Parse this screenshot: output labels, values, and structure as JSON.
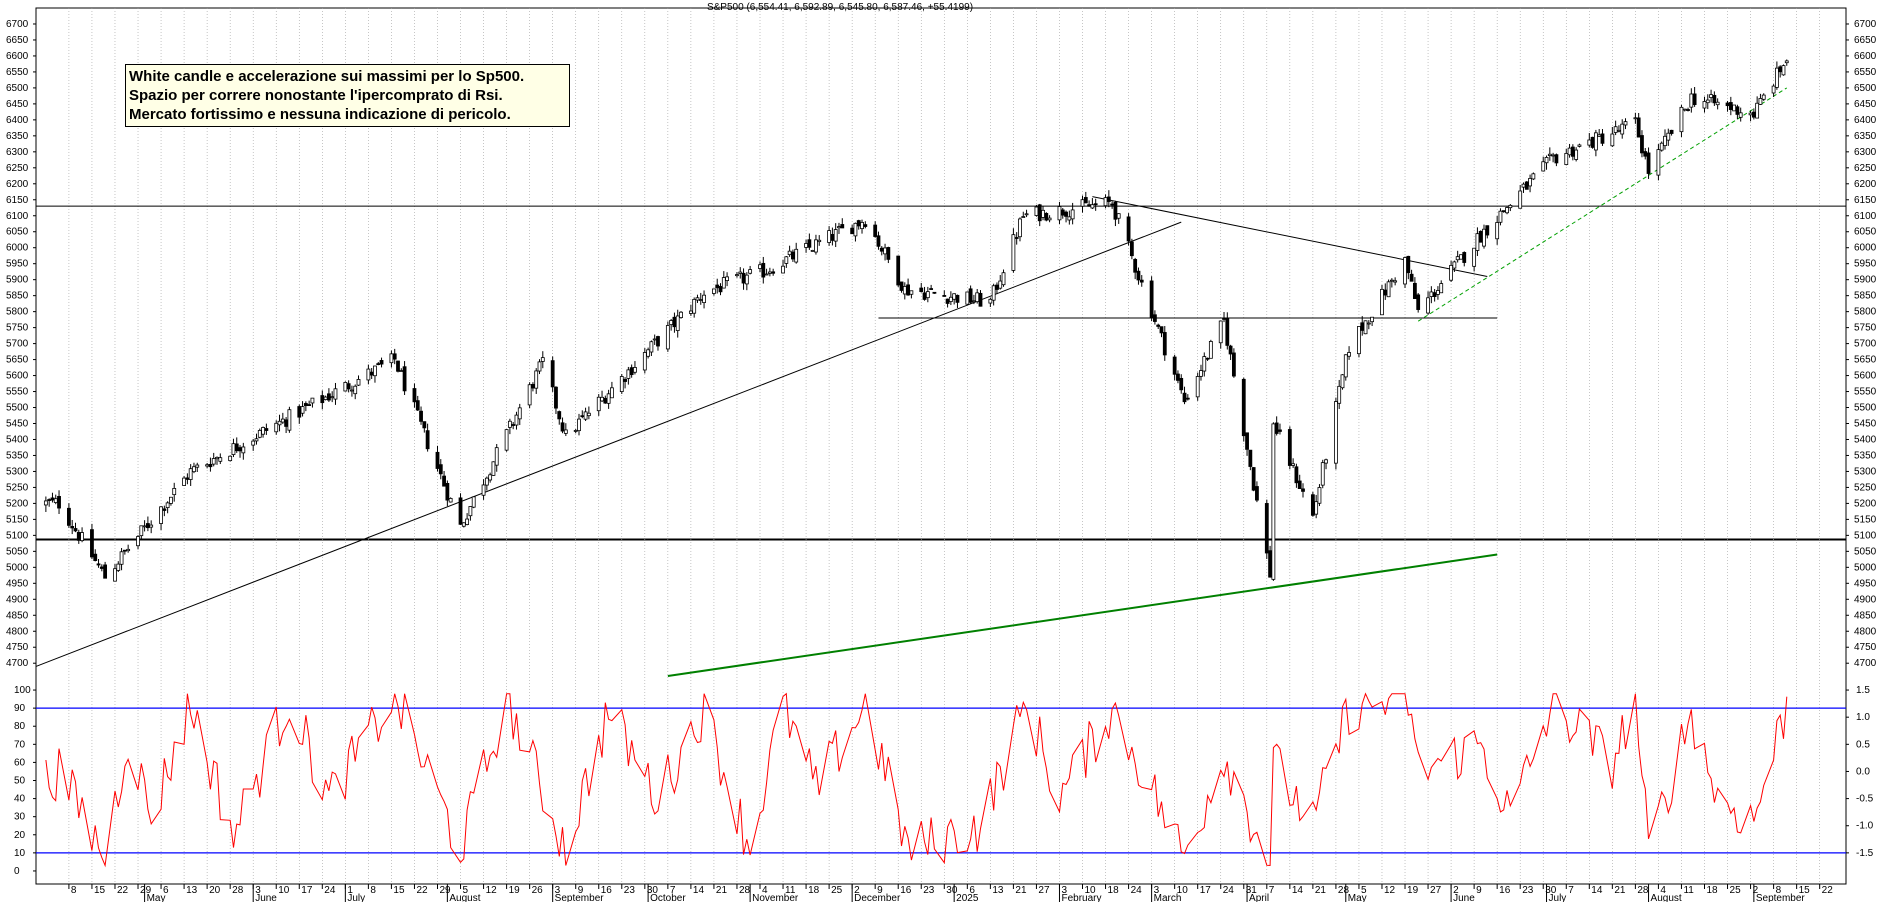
{
  "header": {
    "title": "S&P500 (6,554.41, 6,592.89, 6,545.80, 6,587.46, +55.4199)"
  },
  "annotation": {
    "lines": [
      "White candle e accelerazione sui massimi per lo Sp500.",
      "Spazio per correre nonostante l'ipercomprato di Rsi.",
      "Mercato fortissimo e nessuna indicazione di pericolo."
    ]
  },
  "colors": {
    "candle_up_fill": "#ffffff",
    "candle_down_fill": "#000000",
    "oscillator_line": "#ff0000",
    "oscillator_bands": "#0000ff",
    "support_trendline": "#008000",
    "rising_trendline": "#00a000",
    "grid": "#a0a0a0",
    "annotation_background": "#ffffe6"
  },
  "chart_data": [
    {
      "type": "candlestick",
      "name": "S&P500",
      "ylim": [
        4660,
        6750
      ],
      "y_ticks": [
        4700,
        4750,
        4800,
        4850,
        4900,
        4950,
        5000,
        5050,
        5100,
        5150,
        5200,
        5250,
        5300,
        5350,
        5400,
        5450,
        5500,
        5550,
        5600,
        5650,
        5700,
        5750,
        5800,
        5850,
        5900,
        5950,
        6000,
        6050,
        6100,
        6150,
        6200,
        6250,
        6300,
        6350,
        6400,
        6450,
        6500,
        6550,
        6600,
        6650,
        6700
      ],
      "x_tick_labels": [
        "8",
        "15",
        "22",
        "29",
        "6",
        "13",
        "20",
        "28",
        "3",
        "10",
        "17",
        "24",
        "1",
        "8",
        "15",
        "22",
        "29",
        "5",
        "12",
        "19",
        "26",
        "3",
        "9",
        "16",
        "23",
        "30",
        "7",
        "14",
        "21",
        "28",
        "4",
        "11",
        "18",
        "25",
        "2",
        "9",
        "16",
        "23",
        "30",
        "6",
        "13",
        "21",
        "27",
        "3",
        "10",
        "18",
        "24",
        "3",
        "10",
        "17",
        "24",
        "31",
        "7",
        "14",
        "21",
        "28",
        "5",
        "12",
        "19",
        "27",
        "2",
        "9",
        "16",
        "23",
        "30",
        "7",
        "14",
        "21",
        "28",
        "4",
        "11",
        "18",
        "25",
        "2",
        "8",
        "15",
        "22"
      ],
      "month_labels": [
        "May",
        "June",
        "July",
        "August",
        "September",
        "October",
        "November",
        "December",
        "2025",
        "February",
        "March",
        "April",
        "May",
        "June",
        "July",
        "August",
        "September"
      ],
      "anchor_points": [
        {
          "x": "2024-04-05",
          "y": 5200
        },
        {
          "x": "2024-04-19",
          "y": 4970
        },
        {
          "x": "2024-05-15",
          "y": 5300
        },
        {
          "x": "2024-07-16",
          "y": 5650
        },
        {
          "x": "2024-08-05",
          "y": 5130
        },
        {
          "x": "2024-08-30",
          "y": 5640
        },
        {
          "x": "2024-09-06",
          "y": 5410
        },
        {
          "x": "2024-10-18",
          "y": 5860
        },
        {
          "x": "2024-11-06",
          "y": 5930
        },
        {
          "x": "2024-12-06",
          "y": 6090
        },
        {
          "x": "2024-12-18",
          "y": 5870
        },
        {
          "x": "2025-01-13",
          "y": 5830
        },
        {
          "x": "2025-01-23",
          "y": 6100
        },
        {
          "x": "2025-02-19",
          "y": 6140
        },
        {
          "x": "2025-03-13",
          "y": 5520
        },
        {
          "x": "2025-03-25",
          "y": 5770
        },
        {
          "x": "2025-04-08",
          "y": 4980
        },
        {
          "x": "2025-04-09",
          "y": 5450
        },
        {
          "x": "2025-04-21",
          "y": 5160
        },
        {
          "x": "2025-05-02",
          "y": 5690
        },
        {
          "x": "2025-05-19",
          "y": 5960
        },
        {
          "x": "2025-05-23",
          "y": 5800
        },
        {
          "x": "2025-06-11",
          "y": 6040
        },
        {
          "x": "2025-07-03",
          "y": 6280
        },
        {
          "x": "2025-07-28",
          "y": 6390
        },
        {
          "x": "2025-08-01",
          "y": 6240
        },
        {
          "x": "2025-08-14",
          "y": 6470
        },
        {
          "x": "2025-09-02",
          "y": 6420
        },
        {
          "x": "2025-09-12",
          "y": 6590
        }
      ],
      "lines": [
        {
          "x1": "2024-03-29",
          "y1": 4690,
          "x2": "2025-03-12",
          "y2": 6080
        },
        {
          "x1": "2025-02-13",
          "y1": 6160,
          "x2": "2025-06-13",
          "y2": 5910
        },
        {
          "x1": "2024-12-10",
          "y1": 5780,
          "x2": "2025-06-16",
          "y2": 5780
        },
        {
          "x1": "2024-03-29",
          "y1": 6130,
          "x2": "2025-09-30",
          "y2": 6130
        },
        {
          "x1": "2024-10-07",
          "y1": 4660,
          "x2": "2025-06-16",
          "y2": 5040,
          "color": "support_trendline"
        },
        {
          "x1": "2025-05-23",
          "y1": 5770,
          "x2": "2025-09-12",
          "y2": 6500,
          "color": "rising_trendline",
          "dashed": true
        }
      ]
    },
    {
      "type": "line",
      "name": "RSI",
      "ylim": [
        -5,
        105
      ],
      "y_ticks": [
        0,
        10,
        20,
        30,
        40,
        50,
        60,
        70,
        80,
        90,
        100
      ],
      "right_ticks": [
        "1.5",
        "1.0",
        "0.5",
        "0.0",
        "-0.5",
        "-1.0",
        "-1.5"
      ],
      "bands": [
        10,
        90
      ],
      "anchor_values": [
        {
          "x": "2024-04-01",
          "y": 50
        },
        {
          "x": "2024-04-05",
          "y": 55
        },
        {
          "x": "2024-04-19",
          "y": 8
        },
        {
          "x": "2024-04-26",
          "y": 75
        },
        {
          "x": "2024-05-03",
          "y": 30
        },
        {
          "x": "2024-05-15",
          "y": 92
        },
        {
          "x": "2024-05-28",
          "y": 20
        },
        {
          "x": "2024-06-14",
          "y": 95
        },
        {
          "x": "2024-06-26",
          "y": 40
        },
        {
          "x": "2024-07-16",
          "y": 97
        },
        {
          "x": "2024-08-05",
          "y": 12
        },
        {
          "x": "2024-08-19",
          "y": 95
        },
        {
          "x": "2024-09-06",
          "y": 12
        },
        {
          "x": "2024-09-19",
          "y": 88
        },
        {
          "x": "2024-10-04",
          "y": 40
        },
        {
          "x": "2024-10-18",
          "y": 90
        },
        {
          "x": "2024-11-01",
          "y": 12
        },
        {
          "x": "2024-11-11",
          "y": 92
        },
        {
          "x": "2024-11-21",
          "y": 45
        },
        {
          "x": "2024-12-06",
          "y": 92
        },
        {
          "x": "2024-12-19",
          "y": 12
        },
        {
          "x": "2025-01-10",
          "y": 25
        },
        {
          "x": "2025-01-24",
          "y": 93
        },
        {
          "x": "2025-02-03",
          "y": 40
        },
        {
          "x": "2025-02-19",
          "y": 90
        },
        {
          "x": "2025-03-13",
          "y": 8
        },
        {
          "x": "2025-03-25",
          "y": 65
        },
        {
          "x": "2025-04-08",
          "y": 5
        },
        {
          "x": "2025-04-09",
          "y": 60
        },
        {
          "x": "2025-04-21",
          "y": 25
        },
        {
          "x": "2025-05-02",
          "y": 90
        },
        {
          "x": "2025-05-20",
          "y": 95
        },
        {
          "x": "2025-05-23",
          "y": 55
        },
        {
          "x": "2025-06-11",
          "y": 70
        },
        {
          "x": "2025-06-20",
          "y": 30
        },
        {
          "x": "2025-07-03",
          "y": 92
        },
        {
          "x": "2025-07-21",
          "y": 60
        },
        {
          "x": "2025-07-28",
          "y": 95
        },
        {
          "x": "2025-08-01",
          "y": 10
        },
        {
          "x": "2025-08-14",
          "y": 88
        },
        {
          "x": "2025-08-22",
          "y": 40
        },
        {
          "x": "2025-09-02",
          "y": 28
        },
        {
          "x": "2025-09-12",
          "y": 92
        }
      ]
    }
  ]
}
